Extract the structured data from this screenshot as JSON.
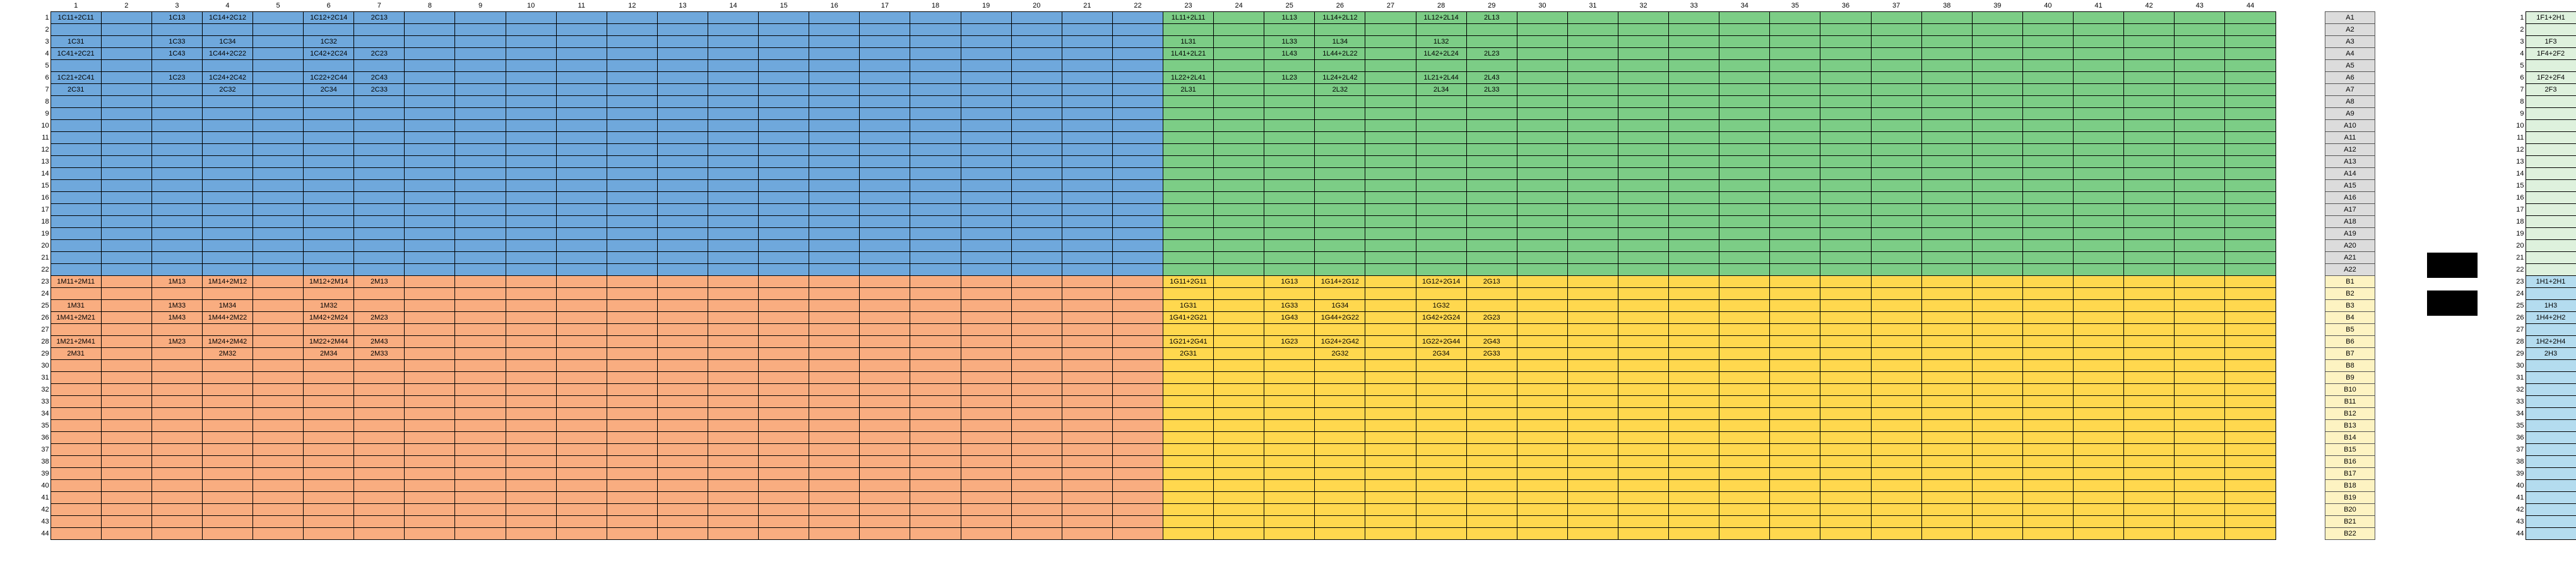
{
  "col_headers": [
    "1",
    "2",
    "3",
    "4",
    "5",
    "6",
    "7",
    "8",
    "9",
    "10",
    "11",
    "12",
    "13",
    "14",
    "15",
    "16",
    "17",
    "18",
    "19",
    "20",
    "21",
    "22",
    "23",
    "24",
    "25",
    "26",
    "27",
    "28",
    "29",
    "30",
    "31",
    "32",
    "33",
    "34",
    "35",
    "36",
    "37",
    "38",
    "39",
    "40",
    "41",
    "42",
    "43",
    "44"
  ],
  "row_numbers": [
    "1",
    "2",
    "3",
    "4",
    "5",
    "6",
    "7",
    "8",
    "9",
    "10",
    "11",
    "12",
    "13",
    "14",
    "15",
    "16",
    "17",
    "18",
    "19",
    "20",
    "21",
    "22",
    "23",
    "24",
    "25",
    "26",
    "27",
    "28",
    "29",
    "30",
    "31",
    "32",
    "33",
    "34",
    "35",
    "36",
    "37",
    "38",
    "39",
    "40",
    "41",
    "42",
    "43",
    "44"
  ],
  "cells": [
    {
      "r": 1,
      "c": 1,
      "t": "1C11+2C11"
    },
    {
      "r": 1,
      "c": 3,
      "t": "1C13"
    },
    {
      "r": 1,
      "c": 4,
      "t": "1C14+2C12"
    },
    {
      "r": 1,
      "c": 6,
      "t": "1C12+2C14"
    },
    {
      "r": 1,
      "c": 7,
      "t": "2C13"
    },
    {
      "r": 3,
      "c": 1,
      "t": "1C31"
    },
    {
      "r": 3,
      "c": 3,
      "t": "1C33"
    },
    {
      "r": 3,
      "c": 4,
      "t": "1C34"
    },
    {
      "r": 3,
      "c": 6,
      "t": "1C32"
    },
    {
      "r": 4,
      "c": 1,
      "t": "1C41+2C21"
    },
    {
      "r": 4,
      "c": 3,
      "t": "1C43"
    },
    {
      "r": 4,
      "c": 4,
      "t": "1C44+2C22"
    },
    {
      "r": 4,
      "c": 6,
      "t": "1C42+2C24"
    },
    {
      "r": 4,
      "c": 7,
      "t": "2C23"
    },
    {
      "r": 6,
      "c": 1,
      "t": "1C21+2C41"
    },
    {
      "r": 6,
      "c": 3,
      "t": "1C23"
    },
    {
      "r": 6,
      "c": 4,
      "t": "1C24+2C42"
    },
    {
      "r": 6,
      "c": 6,
      "t": "1C22+2C44"
    },
    {
      "r": 6,
      "c": 7,
      "t": "2C43"
    },
    {
      "r": 7,
      "c": 1,
      "t": "2C31"
    },
    {
      "r": 7,
      "c": 4,
      "t": "2C32"
    },
    {
      "r": 7,
      "c": 6,
      "t": "2C34"
    },
    {
      "r": 7,
      "c": 7,
      "t": "2C33"
    },
    {
      "r": 1,
      "c": 23,
      "t": "1L11+2L11"
    },
    {
      "r": 1,
      "c": 25,
      "t": "1L13"
    },
    {
      "r": 1,
      "c": 26,
      "t": "1L14+2L12"
    },
    {
      "r": 1,
      "c": 28,
      "t": "1L12+2L14"
    },
    {
      "r": 1,
      "c": 29,
      "t": "2L13"
    },
    {
      "r": 3,
      "c": 23,
      "t": "1L31"
    },
    {
      "r": 3,
      "c": 25,
      "t": "1L33"
    },
    {
      "r": 3,
      "c": 26,
      "t": "1L34"
    },
    {
      "r": 3,
      "c": 28,
      "t": "1L32"
    },
    {
      "r": 4,
      "c": 23,
      "t": "1L41+2L21"
    },
    {
      "r": 4,
      "c": 25,
      "t": "1L43"
    },
    {
      "r": 4,
      "c": 26,
      "t": "1L44+2L22"
    },
    {
      "r": 4,
      "c": 28,
      "t": "1L42+2L24"
    },
    {
      "r": 4,
      "c": 29,
      "t": "2L23"
    },
    {
      "r": 6,
      "c": 23,
      "t": "1L22+2L41"
    },
    {
      "r": 6,
      "c": 25,
      "t": "1L23"
    },
    {
      "r": 6,
      "c": 26,
      "t": "1L24+2L42"
    },
    {
      "r": 6,
      "c": 28,
      "t": "1L21+2L44"
    },
    {
      "r": 6,
      "c": 29,
      "t": "2L43"
    },
    {
      "r": 7,
      "c": 23,
      "t": "2L31"
    },
    {
      "r": 7,
      "c": 26,
      "t": "2L32"
    },
    {
      "r": 7,
      "c": 28,
      "t": "2L34"
    },
    {
      "r": 7,
      "c": 29,
      "t": "2L33"
    },
    {
      "r": 23,
      "c": 1,
      "t": "1M11+2M11"
    },
    {
      "r": 23,
      "c": 3,
      "t": "1M13"
    },
    {
      "r": 23,
      "c": 4,
      "t": "1M14+2M12"
    },
    {
      "r": 23,
      "c": 6,
      "t": "1M12+2M14"
    },
    {
      "r": 23,
      "c": 7,
      "t": "2M13"
    },
    {
      "r": 25,
      "c": 1,
      "t": "1M31"
    },
    {
      "r": 25,
      "c": 3,
      "t": "1M33"
    },
    {
      "r": 25,
      "c": 4,
      "t": "1M34"
    },
    {
      "r": 25,
      "c": 6,
      "t": "1M32"
    },
    {
      "r": 26,
      "c": 1,
      "t": "1M41+2M21"
    },
    {
      "r": 26,
      "c": 3,
      "t": "1M43"
    },
    {
      "r": 26,
      "c": 4,
      "t": "1M44+2M22"
    },
    {
      "r": 26,
      "c": 6,
      "t": "1M42+2M24"
    },
    {
      "r": 26,
      "c": 7,
      "t": "2M23"
    },
    {
      "r": 28,
      "c": 1,
      "t": "1M21+2M41"
    },
    {
      "r": 28,
      "c": 3,
      "t": "1M23"
    },
    {
      "r": 28,
      "c": 4,
      "t": "1M24+2M42"
    },
    {
      "r": 28,
      "c": 6,
      "t": "1M22+2M44"
    },
    {
      "r": 28,
      "c": 7,
      "t": "2M43"
    },
    {
      "r": 29,
      "c": 1,
      "t": "2M31"
    },
    {
      "r": 29,
      "c": 4,
      "t": "2M32"
    },
    {
      "r": 29,
      "c": 6,
      "t": "2M34"
    },
    {
      "r": 29,
      "c": 7,
      "t": "2M33"
    },
    {
      "r": 23,
      "c": 23,
      "t": "1G11+2G11"
    },
    {
      "r": 23,
      "c": 25,
      "t": "1G13"
    },
    {
      "r": 23,
      "c": 26,
      "t": "1G14+2G12"
    },
    {
      "r": 23,
      "c": 28,
      "t": "1G12+2G14"
    },
    {
      "r": 23,
      "c": 29,
      "t": "2G13"
    },
    {
      "r": 25,
      "c": 23,
      "t": "1G31"
    },
    {
      "r": 25,
      "c": 25,
      "t": "1G33"
    },
    {
      "r": 25,
      "c": 26,
      "t": "1G34"
    },
    {
      "r": 25,
      "c": 28,
      "t": "1G32"
    },
    {
      "r": 26,
      "c": 23,
      "t": "1G41+2G21"
    },
    {
      "r": 26,
      "c": 25,
      "t": "1G43"
    },
    {
      "r": 26,
      "c": 26,
      "t": "1G44+2G22"
    },
    {
      "r": 26,
      "c": 28,
      "t": "1G42+2G24"
    },
    {
      "r": 26,
      "c": 29,
      "t": "2G23"
    },
    {
      "r": 28,
      "c": 23,
      "t": "1G21+2G41"
    },
    {
      "r": 28,
      "c": 25,
      "t": "1G23"
    },
    {
      "r": 28,
      "c": 26,
      "t": "1G24+2G42"
    },
    {
      "r": 28,
      "c": 28,
      "t": "1G22+2G44"
    },
    {
      "r": 28,
      "c": 29,
      "t": "2G43"
    },
    {
      "r": 29,
      "c": 23,
      "t": "2G31"
    },
    {
      "r": 29,
      "c": 26,
      "t": "2G32"
    },
    {
      "r": 29,
      "c": 28,
      "t": "2G34"
    },
    {
      "r": 29,
      "c": 29,
      "t": "2G33"
    }
  ],
  "ab_labels": [
    "A1",
    "A2",
    "A3",
    "A4",
    "A5",
    "A6",
    "A7",
    "A8",
    "A9",
    "A10",
    "A11",
    "A12",
    "A13",
    "A14",
    "A15",
    "A16",
    "A17",
    "A18",
    "A19",
    "A20",
    "A21",
    "A22",
    "B1",
    "B2",
    "B3",
    "B4",
    "B5",
    "B6",
    "B7",
    "B8",
    "B9",
    "B10",
    "B11",
    "B12",
    "B13",
    "B14",
    "B15",
    "B16",
    "B17",
    "B18",
    "B19",
    "B20",
    "B21",
    "B22"
  ],
  "right_labels": {
    "1": "1F1+2H1",
    "3": "1F3",
    "4": "1F4+2F2",
    "6": "1F2+2F4",
    "7": "2F3",
    "23": "1H1+2H1",
    "25": "1H3",
    "26": "1H4+2H2",
    "28": "1H2+2H4",
    "29": "2H3"
  },
  "colors": {
    "blue": "#6fa8dc",
    "green": "#7ccd86",
    "orange": "#f9ad80",
    "yellow": "#ffd84e"
  }
}
